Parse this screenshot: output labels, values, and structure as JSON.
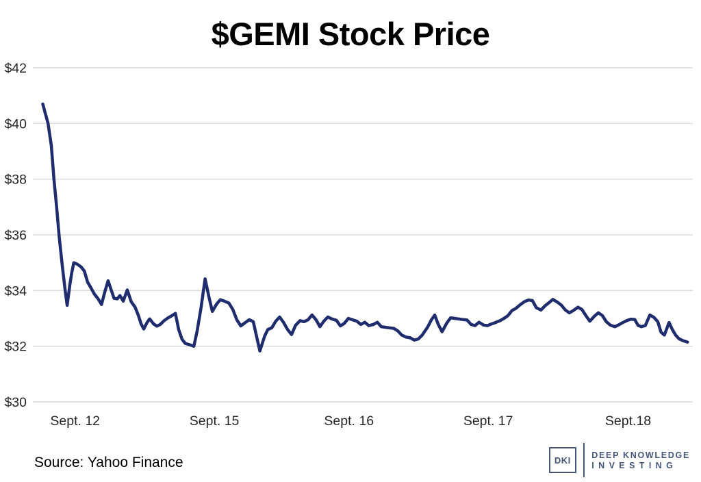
{
  "title": "$GEMI Stock Price",
  "source_note": "Source: Yahoo Finance",
  "logo": {
    "abbr": "DKI",
    "line1": "DEEP KNOWLEDGE",
    "line2": "INVESTING",
    "color": "#44567a"
  },
  "chart_data": {
    "type": "line",
    "title": "$GEMI Stock Price",
    "series_name": "GEMI share price (USD)",
    "xlabel": "",
    "ylabel": "",
    "ylim": [
      30,
      42
    ],
    "grid": true,
    "legend": "none",
    "line_color": "#1f2c6e",
    "gridline_color": "#d9d9d9",
    "yticks": [
      {
        "label": "$42",
        "value": 42
      },
      {
        "label": "$40",
        "value": 40
      },
      {
        "label": "$38",
        "value": 38
      },
      {
        "label": "$36",
        "value": 36
      },
      {
        "label": "$34",
        "value": 34
      },
      {
        "label": "$32",
        "value": 32
      },
      {
        "label": "$30",
        "value": 30
      }
    ],
    "xticks": [
      {
        "label": "Sept. 12",
        "pos": 0.064
      },
      {
        "label": "Sept. 15",
        "pos": 0.275
      },
      {
        "label": "Sept. 16",
        "pos": 0.479
      },
      {
        "label": "Sept. 17",
        "pos": 0.69
      },
      {
        "label": "Sept.18",
        "pos": 0.902
      }
    ],
    "points": [
      [
        0.015,
        40.7
      ],
      [
        0.019,
        40.35
      ],
      [
        0.023,
        40.0
      ],
      [
        0.028,
        39.2
      ],
      [
        0.032,
        38.0
      ],
      [
        0.036,
        37.0
      ],
      [
        0.04,
        35.9
      ],
      [
        0.045,
        34.8
      ],
      [
        0.049,
        34.0
      ],
      [
        0.052,
        33.47
      ],
      [
        0.056,
        34.2
      ],
      [
        0.059,
        34.65
      ],
      [
        0.062,
        35.0
      ],
      [
        0.067,
        34.95
      ],
      [
        0.073,
        34.85
      ],
      [
        0.078,
        34.7
      ],
      [
        0.083,
        34.3
      ],
      [
        0.088,
        34.1
      ],
      [
        0.093,
        33.88
      ],
      [
        0.099,
        33.7
      ],
      [
        0.104,
        33.5
      ],
      [
        0.109,
        33.95
      ],
      [
        0.114,
        34.35
      ],
      [
        0.119,
        34.0
      ],
      [
        0.123,
        33.72
      ],
      [
        0.128,
        33.7
      ],
      [
        0.132,
        33.82
      ],
      [
        0.137,
        33.62
      ],
      [
        0.143,
        34.02
      ],
      [
        0.149,
        33.6
      ],
      [
        0.155,
        33.4
      ],
      [
        0.16,
        33.1
      ],
      [
        0.164,
        32.8
      ],
      [
        0.168,
        32.62
      ],
      [
        0.173,
        32.85
      ],
      [
        0.177,
        32.98
      ],
      [
        0.183,
        32.8
      ],
      [
        0.188,
        32.72
      ],
      [
        0.193,
        32.78
      ],
      [
        0.199,
        32.92
      ],
      [
        0.205,
        33.02
      ],
      [
        0.211,
        33.1
      ],
      [
        0.216,
        33.18
      ],
      [
        0.221,
        32.6
      ],
      [
        0.226,
        32.25
      ],
      [
        0.231,
        32.1
      ],
      [
        0.238,
        32.05
      ],
      [
        0.244,
        32.0
      ],
      [
        0.249,
        32.55
      ],
      [
        0.255,
        33.4
      ],
      [
        0.261,
        34.42
      ],
      [
        0.267,
        33.75
      ],
      [
        0.272,
        33.25
      ],
      [
        0.278,
        33.5
      ],
      [
        0.284,
        33.67
      ],
      [
        0.29,
        33.62
      ],
      [
        0.297,
        33.55
      ],
      [
        0.303,
        33.32
      ],
      [
        0.309,
        32.95
      ],
      [
        0.315,
        32.73
      ],
      [
        0.322,
        32.85
      ],
      [
        0.328,
        32.95
      ],
      [
        0.334,
        32.88
      ],
      [
        0.339,
        32.35
      ],
      [
        0.344,
        31.83
      ],
      [
        0.351,
        32.35
      ],
      [
        0.356,
        32.6
      ],
      [
        0.362,
        32.66
      ],
      [
        0.368,
        32.9
      ],
      [
        0.374,
        33.05
      ],
      [
        0.38,
        32.85
      ],
      [
        0.386,
        32.6
      ],
      [
        0.392,
        32.42
      ],
      [
        0.398,
        32.75
      ],
      [
        0.405,
        32.92
      ],
      [
        0.411,
        32.88
      ],
      [
        0.417,
        32.95
      ],
      [
        0.423,
        33.12
      ],
      [
        0.429,
        32.95
      ],
      [
        0.435,
        32.7
      ],
      [
        0.441,
        32.9
      ],
      [
        0.447,
        33.05
      ],
      [
        0.453,
        32.98
      ],
      [
        0.46,
        32.93
      ],
      [
        0.466,
        32.73
      ],
      [
        0.472,
        32.82
      ],
      [
        0.478,
        33.0
      ],
      [
        0.484,
        32.95
      ],
      [
        0.491,
        32.9
      ],
      [
        0.497,
        32.78
      ],
      [
        0.503,
        32.86
      ],
      [
        0.509,
        32.74
      ],
      [
        0.516,
        32.78
      ],
      [
        0.522,
        32.86
      ],
      [
        0.528,
        32.7
      ],
      [
        0.534,
        32.68
      ],
      [
        0.54,
        32.66
      ],
      [
        0.547,
        32.64
      ],
      [
        0.553,
        32.55
      ],
      [
        0.559,
        32.4
      ],
      [
        0.565,
        32.33
      ],
      [
        0.572,
        32.3
      ],
      [
        0.578,
        32.22
      ],
      [
        0.584,
        32.26
      ],
      [
        0.59,
        32.4
      ],
      [
        0.598,
        32.68
      ],
      [
        0.604,
        32.95
      ],
      [
        0.609,
        33.12
      ],
      [
        0.614,
        32.8
      ],
      [
        0.62,
        32.52
      ],
      [
        0.627,
        32.82
      ],
      [
        0.633,
        33.02
      ],
      [
        0.639,
        33.0
      ],
      [
        0.645,
        32.98
      ],
      [
        0.651,
        32.96
      ],
      [
        0.658,
        32.94
      ],
      [
        0.664,
        32.78
      ],
      [
        0.67,
        32.74
      ],
      [
        0.676,
        32.86
      ],
      [
        0.683,
        32.76
      ],
      [
        0.689,
        32.74
      ],
      [
        0.695,
        32.8
      ],
      [
        0.701,
        32.85
      ],
      [
        0.708,
        32.92
      ],
      [
        0.714,
        33.0
      ],
      [
        0.72,
        33.1
      ],
      [
        0.726,
        33.28
      ],
      [
        0.732,
        33.36
      ],
      [
        0.739,
        33.5
      ],
      [
        0.745,
        33.6
      ],
      [
        0.751,
        33.66
      ],
      [
        0.757,
        33.64
      ],
      [
        0.763,
        33.38
      ],
      [
        0.77,
        33.3
      ],
      [
        0.776,
        33.45
      ],
      [
        0.782,
        33.56
      ],
      [
        0.788,
        33.68
      ],
      [
        0.795,
        33.58
      ],
      [
        0.801,
        33.47
      ],
      [
        0.807,
        33.3
      ],
      [
        0.813,
        33.2
      ],
      [
        0.819,
        33.28
      ],
      [
        0.826,
        33.4
      ],
      [
        0.832,
        33.32
      ],
      [
        0.838,
        33.1
      ],
      [
        0.844,
        32.9
      ],
      [
        0.851,
        33.08
      ],
      [
        0.857,
        33.2
      ],
      [
        0.863,
        33.1
      ],
      [
        0.869,
        32.88
      ],
      [
        0.875,
        32.76
      ],
      [
        0.882,
        32.7
      ],
      [
        0.888,
        32.77
      ],
      [
        0.894,
        32.85
      ],
      [
        0.9,
        32.92
      ],
      [
        0.906,
        32.97
      ],
      [
        0.912,
        32.96
      ],
      [
        0.917,
        32.75
      ],
      [
        0.922,
        32.7
      ],
      [
        0.928,
        32.74
      ],
      [
        0.935,
        33.12
      ],
      [
        0.941,
        33.04
      ],
      [
        0.947,
        32.88
      ],
      [
        0.952,
        32.5
      ],
      [
        0.957,
        32.4
      ],
      [
        0.964,
        32.85
      ],
      [
        0.969,
        32.6
      ],
      [
        0.974,
        32.4
      ],
      [
        0.979,
        32.27
      ],
      [
        0.985,
        32.2
      ],
      [
        0.992,
        32.15
      ]
    ]
  }
}
